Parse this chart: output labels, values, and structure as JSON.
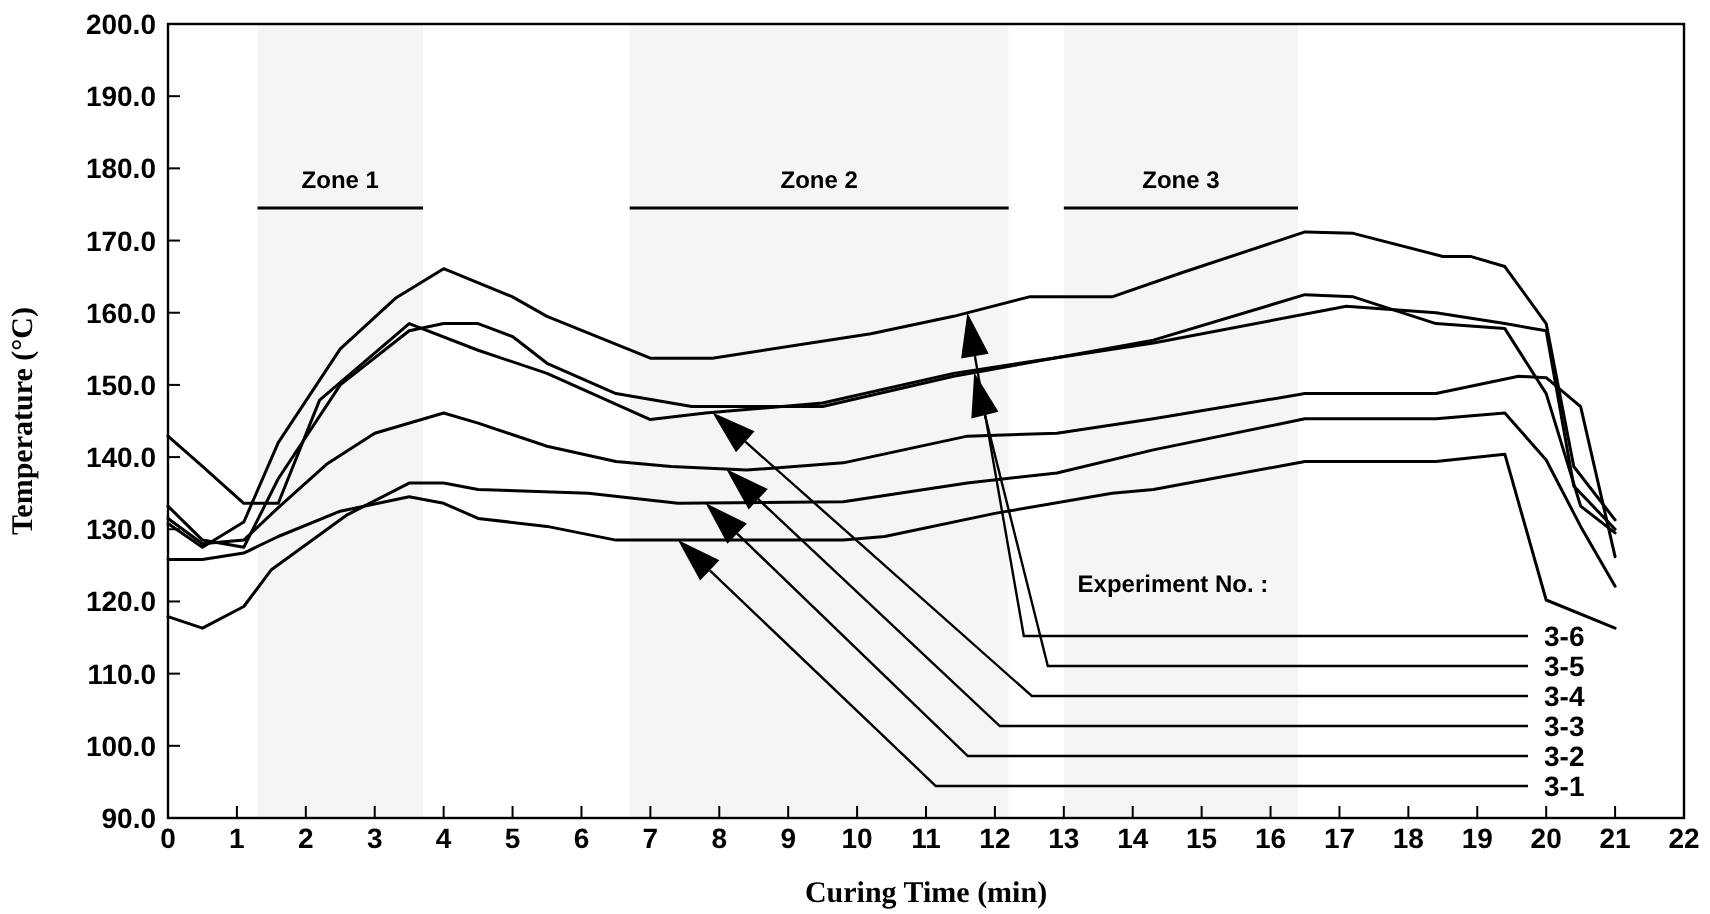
{
  "chart_data": {
    "type": "line",
    "xlabel": "Curing Time (min)",
    "ylabel": "Temperature (°C)",
    "legend_title": "Experiment No. :",
    "legend": "bottom right",
    "grid": false,
    "marker": "none",
    "line_style": "solid",
    "xlim": [
      0,
      22
    ],
    "xticks": [
      0,
      1,
      2,
      3,
      4,
      5,
      6,
      7,
      8,
      9,
      10,
      11,
      12,
      13,
      14,
      15,
      16,
      17,
      18,
      19,
      20,
      21,
      22
    ],
    "ylim": [
      90,
      200
    ],
    "yticks": [
      {
        "value": 90,
        "label": "90.0"
      },
      {
        "value": 100,
        "label": "100.0"
      },
      {
        "value": 110,
        "label": "110.0"
      },
      {
        "value": 120,
        "label": "120.0"
      },
      {
        "value": 130,
        "label": "130.0"
      },
      {
        "value": 140,
        "label": "140.0"
      },
      {
        "value": 150,
        "label": "150.0"
      },
      {
        "value": 160,
        "label": "160.0"
      },
      {
        "value": 170,
        "label": "170.0"
      },
      {
        "value": 180,
        "label": "180.0"
      },
      {
        "value": 190,
        "label": "190.0"
      },
      {
        "value": 200,
        "label": "200.0"
      }
    ],
    "bands": [
      {
        "axis": "x",
        "from": 1.3,
        "to": 3.7,
        "label": "Zone 1"
      },
      {
        "axis": "x",
        "from": 6.7,
        "to": 12.2,
        "label": "Zone 2"
      },
      {
        "axis": "x",
        "from": 13,
        "to": 16.4,
        "label": "Zone 3"
      }
    ],
    "series": [
      {
        "name": "3-1",
        "color": "#000000",
        "x": [
          0,
          0.5,
          1.1,
          1.6,
          2.5,
          3.5,
          4,
          4.5,
          5.5,
          6.5,
          7.4,
          9.8,
          10.4,
          12,
          13.7,
          14.3,
          16.5,
          18.4,
          19.4,
          20,
          21
        ],
        "values": [
          125.8,
          125.8,
          126.7,
          129,
          132.5,
          134.5,
          133.6,
          131.5,
          130.4,
          128.5,
          128.5,
          128.5,
          129,
          132.2,
          135,
          135.5,
          139.4,
          139.4,
          140.4,
          120.2,
          116.3
        ]
      },
      {
        "name": "3-2",
        "color": "#000000",
        "x": [
          0,
          0.5,
          1.1,
          1.5,
          2.6,
          3.5,
          4,
          4.5,
          6.1,
          7.4,
          9.8,
          11.6,
          12.9,
          14.3,
          16.5,
          18.4,
          19.4,
          20,
          20.5,
          21
        ],
        "values": [
          117.9,
          116.3,
          119.3,
          124.4,
          132,
          136.4,
          136.4,
          135.5,
          135,
          133.6,
          133.8,
          136.4,
          137.8,
          141,
          145.3,
          145.3,
          146.1,
          139.6,
          130.4,
          122.1
        ]
      },
      {
        "name": "3-3",
        "color": "#000000",
        "x": [
          0,
          0.5,
          1.1,
          1.6,
          2.3,
          3,
          4,
          4.5,
          5.5,
          6.5,
          7.3,
          8.4,
          9.8,
          11.6,
          12.9,
          14.3,
          16.5,
          18.4,
          19.6,
          20,
          20.5,
          21
        ],
        "values": [
          131.5,
          128,
          128.5,
          133,
          139,
          143.3,
          146.1,
          144.7,
          141.5,
          139.4,
          138.7,
          138.2,
          139.2,
          142.9,
          143.3,
          145.3,
          148.8,
          148.8,
          151.2,
          151,
          147,
          126.2
        ]
      },
      {
        "name": "3-4",
        "color": "#000000",
        "x": [
          0,
          0.5,
          1.1,
          1.6,
          2.2,
          3.5,
          4.5,
          5.5,
          7,
          7.8,
          9.5,
          11.4,
          14.3,
          17.1,
          18.4,
          19.4,
          20,
          20.4,
          21
        ],
        "values": [
          142.9,
          138.7,
          133.6,
          133.6,
          147.9,
          158.5,
          154.8,
          151.6,
          145.2,
          146.1,
          147.5,
          151.6,
          155.8,
          160.9,
          160,
          158.5,
          157.5,
          136,
          130
        ]
      },
      {
        "name": "3-5",
        "color": "#000000",
        "x": [
          0,
          0.5,
          1.1,
          1.6,
          2.5,
          3.5,
          4,
          4.5,
          5,
          5.5,
          6.5,
          7.6,
          9.5,
          11.4,
          14.3,
          16.5,
          17.2,
          18.4,
          19.4,
          20,
          20.5,
          21
        ],
        "values": [
          133.2,
          128.5,
          127.5,
          137,
          150,
          157.5,
          158.5,
          158.5,
          156.7,
          153,
          148.8,
          147,
          147,
          151.2,
          156.2,
          162.5,
          162.2,
          158.5,
          157.8,
          148.8,
          133.2,
          129.5
        ]
      },
      {
        "name": "3-6",
        "color": "#000000",
        "x": [
          0,
          0.5,
          1.1,
          1.6,
          2.5,
          3.3,
          4,
          5,
          5.5,
          7,
          7.9,
          10.2,
          11.4,
          12.5,
          13.7,
          14.7,
          16.5,
          17.2,
          18.5,
          18.9,
          19.4,
          20,
          20.4,
          21
        ],
        "values": [
          130.8,
          127.5,
          131,
          142,
          155,
          162,
          166.1,
          162.2,
          159.5,
          153.7,
          153.7,
          157.1,
          159.5,
          162.2,
          162.2,
          165.5,
          171.2,
          171,
          167.8,
          167.8,
          166.4,
          158.5,
          138.7,
          131.3
        ]
      }
    ]
  }
}
